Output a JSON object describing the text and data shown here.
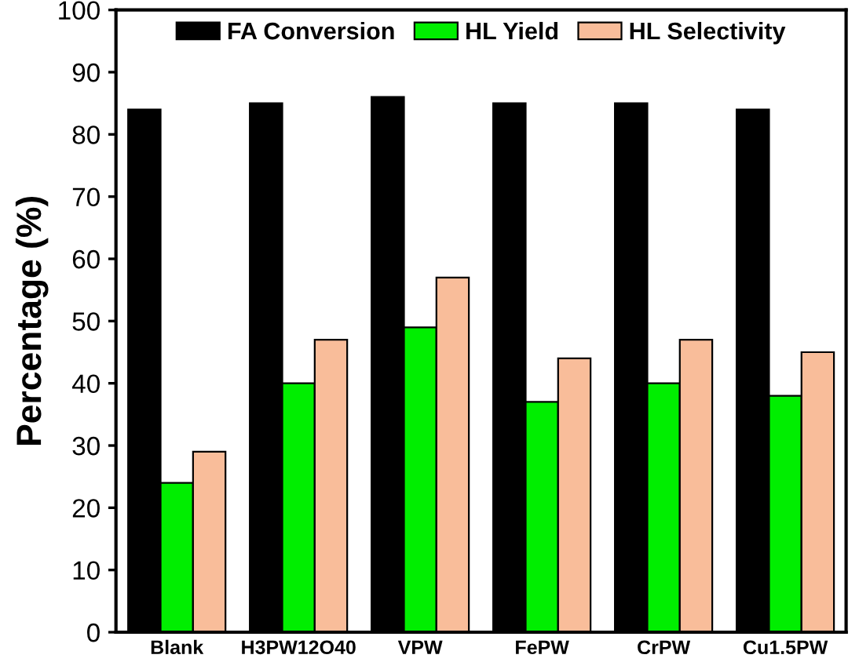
{
  "chart_data": {
    "type": "bar",
    "ylabel": "Percentage (%)",
    "categories": [
      "Blank",
      "H3PW12O40",
      "VPW",
      "FePW",
      "CrPW",
      "Cu1.5PW"
    ],
    "series": [
      {
        "name": "FA Conversion",
        "color": "#000000",
        "values": [
          84,
          85,
          86,
          85,
          85,
          84
        ]
      },
      {
        "name": "HL Yield",
        "color": "#00ee00",
        "values": [
          24,
          40,
          49,
          37,
          40,
          38
        ]
      },
      {
        "name": "HL Selectivity",
        "color": "#f9bd9a",
        "values": [
          29,
          47,
          57,
          44,
          47,
          45
        ]
      }
    ],
    "ylim": [
      0,
      100
    ],
    "yticks": [
      0,
      10,
      20,
      30,
      40,
      50,
      60,
      70,
      80,
      90,
      100
    ],
    "grid": false,
    "legend": "top"
  }
}
